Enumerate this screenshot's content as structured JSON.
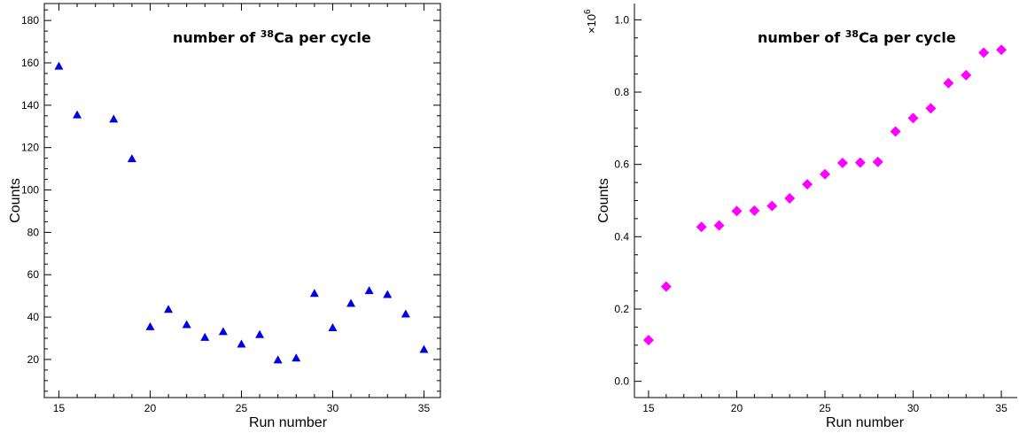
{
  "chart_data": [
    {
      "type": "scatter",
      "title": "number of 38Ca per cycle",
      "title_parts": {
        "before": "number of ",
        "superscript": "38",
        "after": "Ca per cycle"
      },
      "xlabel": "Run number",
      "ylabel": "Counts",
      "xlim": [
        14.2,
        35.9
      ],
      "ylim": [
        2,
        188
      ],
      "x_ticks": [
        15,
        20,
        25,
        30,
        35
      ],
      "y_ticks": [
        20,
        40,
        60,
        80,
        100,
        120,
        140,
        160,
        180
      ],
      "y_tick_labels": [
        "20",
        "40",
        "60",
        "80",
        "100",
        "120",
        "140",
        "160",
        "180"
      ],
      "marker": "triangle",
      "color": "#0000e6",
      "series": [
        {
          "x": [
            15,
            16,
            18,
            19,
            20,
            21,
            22,
            23,
            24,
            25,
            26,
            27,
            28,
            29,
            30,
            31,
            32,
            33,
            34,
            35
          ],
          "y": [
            158.5,
            135.5,
            133.5,
            114.8,
            35.5,
            43.7,
            36.5,
            30.5,
            33.2,
            27.3,
            31.8,
            19.8,
            20.7,
            51.2,
            35.0,
            46.5,
            52.5,
            50.7,
            41.5,
            24.8
          ]
        }
      ]
    },
    {
      "type": "scatter",
      "title": "number of 38Ca per cycle",
      "title_parts": {
        "before": "number of ",
        "superscript": "38",
        "after": "Ca per cycle"
      },
      "xlabel": "Run number",
      "ylabel": "Counts",
      "scale_base": "×10",
      "scale_exponent": "6",
      "xlim": [
        14.2,
        35.9
      ],
      "ylim": [
        -0.045,
        1.045
      ],
      "x_ticks": [
        15,
        20,
        25,
        30,
        35
      ],
      "y_ticks": [
        0.0,
        0.2,
        0.4,
        0.6,
        0.8,
        1.0
      ],
      "y_tick_labels": [
        "0.0",
        "0.2",
        "0.4",
        "0.6",
        "0.8",
        "1.0"
      ],
      "marker": "diamond",
      "color": "#ff00ff",
      "series": [
        {
          "x": [
            15,
            16,
            18,
            19,
            20,
            21,
            22,
            23,
            24,
            25,
            26,
            27,
            28,
            29,
            30,
            31,
            32,
            33,
            34,
            35
          ],
          "y": [
            0.114,
            0.262,
            0.427,
            0.431,
            0.471,
            0.472,
            0.485,
            0.506,
            0.545,
            0.573,
            0.604,
            0.605,
            0.607,
            0.691,
            0.728,
            0.755,
            0.825,
            0.847,
            0.909,
            0.917
          ]
        }
      ]
    }
  ]
}
